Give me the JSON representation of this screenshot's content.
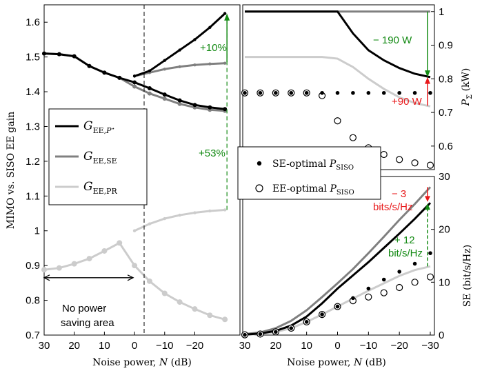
{
  "colors": {
    "black": "#000000",
    "dark_gray": "#808080",
    "light_gray": "#cccccc",
    "green": "#138a13",
    "red": "#e8191b"
  },
  "chart_data": [
    {
      "type": "line",
      "panel": "left",
      "xlabel": "Noise power, N (dB)",
      "ylabel": "MIMO vs. SISO EE gain",
      "xlim": [
        30,
        -35
      ],
      "ylim": [
        0.7,
        1.65
      ],
      "x_ticks": [
        "30",
        "20",
        "10",
        "0",
        "−10",
        "−20"
      ],
      "y_ticks": [
        "0.7",
        "0.8",
        "0.9",
        "1",
        "1.1",
        "1.2",
        "1.3",
        "1.4",
        "1.5",
        "1.6"
      ],
      "x_values": [
        30,
        25,
        20,
        15,
        10,
        5,
        0,
        -5,
        -10,
        -15,
        -20,
        -25,
        -30
      ],
      "series": [
        {
          "name": "G_EE,P*",
          "color": "black",
          "values": [
            1.51,
            1.508,
            1.502,
            1.474,
            1.455,
            1.44,
            1.427,
            1.41,
            1.392,
            1.375,
            1.362,
            1.355,
            1.35
          ],
          "extra": {
            "x": [
              0,
              -5,
              -10,
              -15,
              -20,
              -25,
              -30
            ],
            "values": [
              1.445,
              1.46,
              1.49,
              1.52,
              1.55,
              1.585,
              1.625
            ]
          }
        },
        {
          "name": "G_EE,SE",
          "color": "dark_gray",
          "values": [
            1.51,
            1.508,
            1.502,
            1.474,
            1.455,
            1.44,
            1.415,
            1.395,
            1.38,
            1.365,
            1.355,
            1.348,
            1.345
          ],
          "extra": {
            "x": [
              0,
              -5,
              -10,
              -15,
              -20,
              -25,
              -30
            ],
            "values": [
              1.445,
              1.455,
              1.465,
              1.472,
              1.477,
              1.48,
              1.482
            ]
          }
        },
        {
          "name": "G_EE,PR",
          "color": "light_gray",
          "values": [
            0.888,
            0.893,
            0.905,
            0.92,
            0.942,
            0.965,
            0.9,
            0.855,
            0.82,
            0.795,
            0.775,
            0.757,
            0.745
          ],
          "extra": {
            "x": [
              0,
              -5,
              -10,
              -15,
              -20,
              -25,
              -30
            ],
            "values": [
              1.0,
              1.02,
              1.035,
              1.045,
              1.052,
              1.057,
              1.06
            ]
          }
        }
      ],
      "legend_placement": "middle-left",
      "annotations": {
        "gain_high": "+10%",
        "gain_mid": "+53%",
        "no_power_line1": "No power",
        "no_power_line2": "saving area"
      }
    },
    {
      "type": "line",
      "panel": "right-top",
      "ylabel": "P_Σ (kW)",
      "xlim": [
        30,
        -35
      ],
      "ylim": [
        0.53,
        1.02
      ],
      "y_ticks": [
        "1",
        "0.9",
        "0.8",
        "0.7",
        "0.6"
      ],
      "x_values": [
        30,
        25,
        20,
        15,
        10,
        5,
        0,
        -5,
        -10,
        -15,
        -20,
        -25,
        -30
      ],
      "series": [
        {
          "name": "P_Σ black",
          "color": "black",
          "values": [
            1.0,
            1.0,
            1.0,
            1.0,
            1.0,
            1.0,
            1.0,
            0.935,
            0.885,
            0.855,
            0.832,
            0.815,
            0.805
          ]
        },
        {
          "name": "P_Σ dark gray",
          "color": "dark_gray",
          "values": [
            1.0,
            1.0,
            1.0,
            1.0,
            1.0,
            1.0,
            1.0,
            1.0,
            1.0,
            1.0,
            1.0,
            1.0,
            1.0
          ]
        },
        {
          "name": "P_Σ light gray",
          "color": "light_gray",
          "values": [
            0.865,
            0.865,
            0.865,
            0.865,
            0.865,
            0.865,
            0.86,
            0.835,
            0.8,
            0.77,
            0.745,
            0.728,
            0.718
          ]
        }
      ],
      "markers": {
        "se_optimal": {
          "x": [
            30,
            25,
            20,
            15,
            10,
            5,
            0,
            -5,
            -10,
            -15,
            -20,
            -25,
            -30
          ],
          "values": [
            0.758,
            0.758,
            0.758,
            0.758,
            0.758,
            0.758,
            0.758,
            0.758,
            0.758,
            0.758,
            0.758,
            0.758,
            0.758
          ]
        },
        "ee_optimal": {
          "x": [
            30,
            25,
            20,
            15,
            10,
            5,
            0,
            -5,
            -10,
            -15,
            -20,
            -25,
            -30
          ],
          "values": [
            0.758,
            0.758,
            0.758,
            0.758,
            0.758,
            0.75,
            0.675,
            0.625,
            0.595,
            0.575,
            0.56,
            0.55,
            0.543
          ]
        }
      },
      "annotations": {
        "saving": "− 190 W",
        "increase": "+90 W"
      }
    },
    {
      "type": "line",
      "panel": "right-bottom",
      "xlabel": "Noise power, N (dB)",
      "ylabel": "SE (bit/s/Hz)",
      "xlim": [
        30,
        -35
      ],
      "ylim": [
        0,
        30
      ],
      "x_ticks": [
        "30",
        "20",
        "10",
        "0",
        "−10",
        "−20",
        "−30"
      ],
      "y_ticks": [
        "0",
        "10",
        "20",
        "30"
      ],
      "x_values": [
        30,
        25,
        20,
        15,
        10,
        5,
        0,
        -5,
        -10,
        -15,
        -20,
        -25,
        -30
      ],
      "series": [
        {
          "name": "SE black",
          "color": "black",
          "values": [
            0.1,
            0.3,
            0.8,
            1.8,
            3.5,
            6.0,
            8.8,
            11.3,
            13.8,
            16.5,
            19.2,
            22.0,
            25.0
          ]
        },
        {
          "name": "SE dark gray",
          "color": "dark_gray",
          "values": [
            0.2,
            0.5,
            1.3,
            2.7,
            4.7,
            7.2,
            9.8,
            12.5,
            15.5,
            18.6,
            21.8,
            24.8,
            28.0
          ]
        },
        {
          "name": "SE light gray",
          "color": "light_gray",
          "values": [
            0.05,
            0.2,
            0.6,
            1.3,
            2.5,
            3.9,
            5.4,
            6.9,
            8.4,
            9.8,
            11.2,
            12.3,
            13.0
          ]
        }
      ],
      "markers": {
        "se_optimal": {
          "x": [
            30,
            25,
            20,
            15,
            10,
            5,
            0,
            -5,
            -10,
            -15,
            -20,
            -25,
            -30
          ],
          "values": [
            0.05,
            0.2,
            0.6,
            1.3,
            2.5,
            3.9,
            5.4,
            7.0,
            8.8,
            10.5,
            12.0,
            13.5,
            15.5
          ]
        },
        "ee_optimal": {
          "x": [
            30,
            25,
            20,
            15,
            10,
            5,
            0,
            -5,
            -10,
            -15,
            -20,
            -25,
            -30
          ],
          "values": [
            0.05,
            0.2,
            0.6,
            1.3,
            2.5,
            3.9,
            5.4,
            6.5,
            7.2,
            8.0,
            9.0,
            10.0,
            11.0
          ]
        }
      },
      "legend": {
        "se_optimal": "SE-optimal P_SISO",
        "ee_optimal": "EE-optimal P_SISO"
      },
      "annotations": {
        "minus_line1": "− 3",
        "minus_line2": "bits/s/Hz",
        "plus_line1": "+ 12",
        "plus_line2": "bit/s/Hz"
      }
    }
  ]
}
